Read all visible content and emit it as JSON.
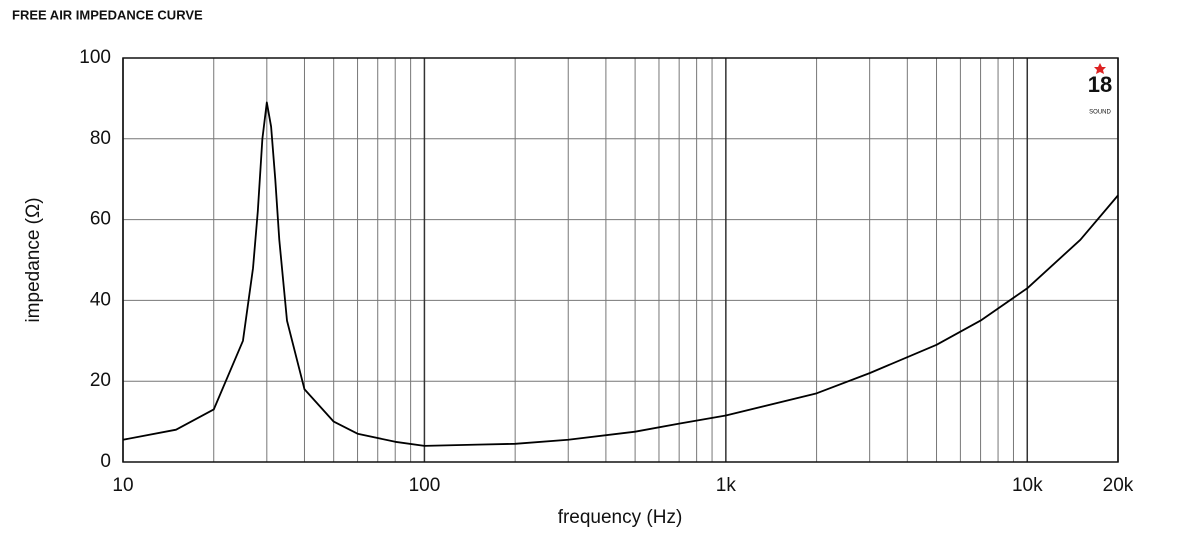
{
  "chart_data": {
    "type": "line",
    "title": "FREE AIR IMPEDANCE CURVE",
    "xlabel": "frequency (Hz)",
    "ylabel": "impedance (Ω)",
    "logo": {
      "number": "18",
      "text": "SOUND"
    },
    "x": [
      10,
      15,
      20,
      25,
      27,
      28,
      29,
      30,
      31,
      32,
      33,
      35,
      40,
      50,
      60,
      80,
      100,
      150,
      200,
      300,
      500,
      700,
      1000,
      2000,
      3000,
      5000,
      7000,
      10000,
      15000,
      20000
    ],
    "values": [
      5.5,
      8,
      13,
      30,
      48,
      62,
      80,
      89,
      83,
      70,
      55,
      35,
      18,
      10,
      7,
      5,
      4,
      4.3,
      4.5,
      5.5,
      7.5,
      9.5,
      11.5,
      17,
      22,
      29,
      35,
      43,
      55,
      66
    ],
    "color": "#000000",
    "xscale": "log",
    "xlim": [
      10,
      20000
    ],
    "xticks": [
      10,
      100,
      {
        "value": 1000,
        "label": "1k"
      },
      {
        "value": 10000,
        "label": "10k"
      },
      {
        "value": 20000,
        "label": "20k"
      }
    ],
    "x_minor_grid": [
      20,
      30,
      40,
      50,
      60,
      70,
      80,
      90,
      200,
      300,
      400,
      500,
      600,
      700,
      800,
      900,
      2000,
      3000,
      4000,
      5000,
      6000,
      7000,
      8000,
      9000
    ],
    "ylim": [
      0,
      100
    ],
    "yticks": [
      0,
      20,
      40,
      60,
      80,
      100
    ],
    "grid": true
  }
}
